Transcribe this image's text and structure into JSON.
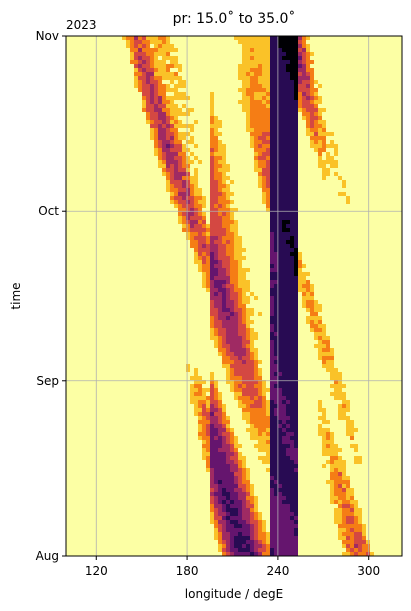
{
  "chart_data": {
    "type": "heatmap",
    "title": "pr: 15.0˚ to 35.0˚",
    "xlabel": "longitude / degE",
    "ylabel": "time",
    "year_label": "2023",
    "xlim": [
      100,
      322
    ],
    "x_ticks": [
      120,
      180,
      240,
      300
    ],
    "y_ticks": [
      {
        "date": "2023-08-01",
        "label": "Aug"
      },
      {
        "date": "2023-09-01",
        "label": "Sep"
      },
      {
        "date": "2023-10-01",
        "label": "Oct"
      },
      {
        "date": "2023-11-01",
        "label": "Nov"
      }
    ],
    "ylim": [
      "2023-08-01",
      "2023-11-01"
    ],
    "grid": true,
    "colormap": [
      "#000004",
      "#280b53",
      "#65156e",
      "#9f2a63",
      "#d44842",
      "#f57d15",
      "#fac228",
      "#fcffa4"
    ],
    "dark_band_longitude": [
      236,
      252
    ]
  }
}
